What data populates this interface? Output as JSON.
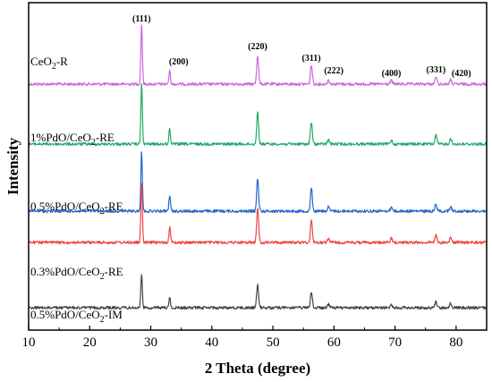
{
  "chart_data": {
    "type": "line",
    "title": "",
    "xlabel": "2 Theta (degree)",
    "ylabel": "Intensity",
    "xlim": [
      10,
      85
    ],
    "xticks": [
      10,
      20,
      30,
      40,
      50,
      60,
      70,
      80
    ],
    "y_tick_labels": false,
    "grid": false,
    "legend": "none",
    "peak_labels": [
      {
        "text": "(111)",
        "x": 28.5
      },
      {
        "text": "(200)",
        "x": 33.1
      },
      {
        "text": "(220)",
        "x": 47.5
      },
      {
        "text": "(311)",
        "x": 56.3
      },
      {
        "text": "(222)",
        "x": 59.1
      },
      {
        "text": "(400)",
        "x": 69.4
      },
      {
        "text": "(331)",
        "x": 76.7
      },
      {
        "text": "(420)",
        "x": 79.1
      }
    ],
    "series": [
      {
        "name": "CeO2-R",
        "label_main": "CeO",
        "label_sub": "2",
        "label_tail": "-R",
        "color": "#cc66dd",
        "offset": 4,
        "peaks": [
          {
            "x": 28.5,
            "h": 1.0
          },
          {
            "x": 33.1,
            "h": 0.23
          },
          {
            "x": 47.5,
            "h": 0.48
          },
          {
            "x": 56.3,
            "h": 0.32
          },
          {
            "x": 59.1,
            "h": 0.07
          },
          {
            "x": 69.4,
            "h": 0.06
          },
          {
            "x": 76.7,
            "h": 0.12
          },
          {
            "x": 79.1,
            "h": 0.07
          }
        ]
      },
      {
        "name": "1%PdO/CeO2-RE",
        "label_main": "1%PdO/CeO",
        "label_sub": "2",
        "label_tail": "-RE",
        "color": "#22aa66",
        "offset": 3,
        "peaks": [
          {
            "x": 28.5,
            "h": 1.0
          },
          {
            "x": 33.1,
            "h": 0.26
          },
          {
            "x": 47.5,
            "h": 0.52
          },
          {
            "x": 56.3,
            "h": 0.36
          },
          {
            "x": 59.1,
            "h": 0.07
          },
          {
            "x": 69.4,
            "h": 0.07
          },
          {
            "x": 76.7,
            "h": 0.14
          },
          {
            "x": 79.1,
            "h": 0.09
          }
        ]
      },
      {
        "name": "0.5%PdO/CeO2-RE",
        "label_main": "0.5%PdO/CeO",
        "label_sub": "2",
        "label_tail": "-RE",
        "color": "#2266cc",
        "offset": 2,
        "peaks": [
          {
            "x": 28.5,
            "h": 1.0
          },
          {
            "x": 33.1,
            "h": 0.27
          },
          {
            "x": 47.5,
            "h": 0.54
          },
          {
            "x": 56.3,
            "h": 0.38
          },
          {
            "x": 59.1,
            "h": 0.07
          },
          {
            "x": 69.4,
            "h": 0.07
          },
          {
            "x": 76.7,
            "h": 0.13
          },
          {
            "x": 79.1,
            "h": 0.08
          }
        ]
      },
      {
        "name": "0.3%PdO/CeO2-RE",
        "label_main": "0.3%PdO/CeO",
        "label_sub": "2",
        "label_tail": "-RE",
        "color": "#ee4444",
        "offset": 1,
        "peaks": [
          {
            "x": 28.5,
            "h": 1.0
          },
          {
            "x": 33.1,
            "h": 0.26
          },
          {
            "x": 47.5,
            "h": 0.56
          },
          {
            "x": 56.3,
            "h": 0.36
          },
          {
            "x": 59.1,
            "h": 0.07
          },
          {
            "x": 69.4,
            "h": 0.07
          },
          {
            "x": 76.7,
            "h": 0.13
          },
          {
            "x": 79.1,
            "h": 0.08
          }
        ]
      },
      {
        "name": "0.5%PdO/CeO2-IM",
        "label_main": "0.5%PdO/CeO",
        "label_sub": "2",
        "label_tail": "-IM",
        "color": "#444444",
        "offset": 0,
        "peaks": [
          {
            "x": 28.5,
            "h": 0.56
          },
          {
            "x": 33.1,
            "h": 0.17
          },
          {
            "x": 47.5,
            "h": 0.38
          },
          {
            "x": 56.3,
            "h": 0.26
          },
          {
            "x": 59.1,
            "h": 0.06
          },
          {
            "x": 69.4,
            "h": 0.06
          },
          {
            "x": 76.7,
            "h": 0.1
          },
          {
            "x": 79.1,
            "h": 0.07
          }
        ]
      }
    ]
  }
}
